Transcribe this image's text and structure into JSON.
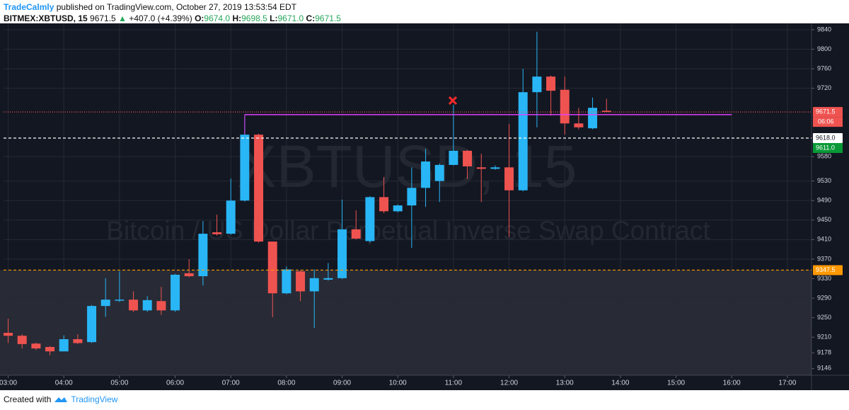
{
  "header": {
    "author": "TradeCalmly",
    "published": "published on TradingView.com, October 27, 2019 13:53:54 EDT",
    "symbol": "BITMEX:XBTUSD, 15",
    "last": "9671.5",
    "arrow": "▲",
    "change": "+407.0 (+4.39%)",
    "o_label": "O:",
    "o": "9674.0",
    "h_label": "H:",
    "h": "9698.5",
    "l_label": "L:",
    "l": "9671.0",
    "c_label": "C:",
    "c": "9671.5"
  },
  "footer": {
    "created": "Created with",
    "brand": "TradingView"
  },
  "chart_data": {
    "type": "candlestick",
    "watermark": "XBTUSD, 15",
    "watermark_sub": "Bitcoin / US Dollar Perpetual Inverse Swap Contract",
    "x": [
      "03:00",
      "03:15",
      "03:30",
      "03:45",
      "04:00",
      "04:15",
      "04:30",
      "04:45",
      "05:00",
      "05:15",
      "05:30",
      "05:45",
      "06:00",
      "06:15",
      "06:30",
      "06:45",
      "07:00",
      "07:15",
      "07:30",
      "07:45",
      "08:00",
      "08:15",
      "08:30",
      "08:45",
      "09:00",
      "09:15",
      "09:30",
      "09:45",
      "10:00",
      "10:15",
      "10:30",
      "10:45",
      "11:00",
      "11:15",
      "11:30",
      "11:45",
      "12:00",
      "12:15",
      "12:30",
      "12:45",
      "13:00",
      "13:15",
      "13:30",
      "13:45"
    ],
    "open": [
      9219,
      9213,
      9197,
      9190,
      9181,
      9206,
      9200,
      9274,
      9287,
      9287,
      9265,
      9284,
      9265,
      9341,
      9335,
      9425,
      9422,
      9490,
      9625,
      9406,
      9300,
      9345,
      9304,
      9328,
      9331,
      9431,
      9407,
      9497,
      9468,
      9480,
      9516,
      9530,
      9563,
      9592,
      9558,
      9555,
      9558,
      9511,
      9712,
      9744,
      9717,
      9648,
      9638,
      9674
    ],
    "high": [
      9248,
      9216,
      9199,
      9192,
      9214,
      9216,
      9276,
      9331,
      9345,
      9304,
      9294,
      9313,
      9340,
      9370,
      9448,
      9461,
      9535,
      9664,
      9627,
      9406,
      9355,
      9347,
      9349,
      9362,
      9492,
      9470,
      9499,
      9538,
      9482,
      9558,
      9596,
      9566,
      9686,
      9594,
      9586,
      9562,
      9647,
      9760,
      9836,
      9746,
      9744,
      9680,
      9701,
      9698.5
    ],
    "low": [
      9198,
      9187,
      9184,
      9173,
      9181,
      9196,
      9198,
      9252,
      9282,
      9262,
      9262,
      9256,
      9262,
      9333,
      9316,
      9418,
      9420,
      9488,
      9404,
      9251,
      9298,
      9284,
      9229,
      9326,
      9329,
      9410,
      9404,
      9464,
      9466,
      9393,
      9477,
      9487,
      9562,
      9534,
      9487,
      9553,
      9415,
      9509,
      9640,
      9664,
      9625,
      9636,
      9636,
      9671
    ],
    "close": [
      9213,
      9196,
      9187,
      9181,
      9206,
      9198,
      9274,
      9287,
      9287,
      9265,
      9286,
      9265,
      9338,
      9335,
      9422,
      9421,
      9490,
      9625,
      9406,
      9300,
      9349,
      9304,
      9331,
      9331,
      9431,
      9412,
      9497,
      9468,
      9480,
      9516,
      9570,
      9563,
      9592,
      9560,
      9555,
      9558,
      9511,
      9712,
      9744,
      9715,
      9648,
      9640,
      9680,
      9671.5
    ],
    "up_color": "#29b6f6",
    "down_color": "#ef5350",
    "ylim": [
      9132,
      9853
    ],
    "yticks": [
      9840,
      9800,
      9760,
      9720,
      9580,
      9530,
      9490,
      9450,
      9410,
      9370,
      9330,
      9290,
      9250,
      9210,
      9178,
      9146
    ],
    "xlim": [
      "02:55",
      "17:26"
    ],
    "xticks": [
      "03:00",
      "04:00",
      "05:00",
      "06:00",
      "07:00",
      "08:00",
      "09:00",
      "10:00",
      "11:00",
      "12:00",
      "13:00",
      "14:00",
      "15:00",
      "16:00",
      "17:00"
    ],
    "grid": true,
    "levels": [
      {
        "value": 9671.5,
        "label": "9671.5",
        "color": "#ef5350",
        "style": "dotted"
      },
      {
        "value": 9618,
        "label": "9618.0",
        "color": "#ffffff",
        "style": "dashed"
      },
      {
        "value": 9347.5,
        "label": "9347.5",
        "color": "#ff9800",
        "style": "dashed",
        "fill_below": true
      },
      {
        "value": 9666,
        "color": "#e040fb",
        "style": "solid",
        "from": "07:15",
        "to": "16:00"
      }
    ],
    "countdown": "06:06",
    "bid_label": {
      "value": 9611,
      "label": "9611.0",
      "color": "#089936"
    }
  }
}
